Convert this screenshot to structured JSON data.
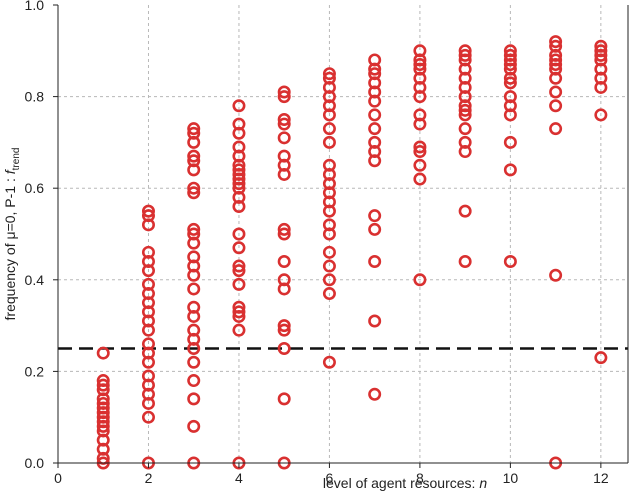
{
  "chart_data": {
    "type": "scatter",
    "title": "",
    "xlabel": "level of agent resources:",
    "xlabel_var": "n",
    "ylabel_prefix": "frequency of",
    "ylabel_mu": "μ=0, P-1 :",
    "ylabel_f": "f",
    "ylabel_sub": "trend",
    "xlim": [
      0,
      12.6
    ],
    "ylim": [
      0,
      1.0
    ],
    "x_ticks": [
      0,
      2,
      4,
      6,
      8,
      10,
      12
    ],
    "y_ticks": [
      0.0,
      0.2,
      0.4,
      0.6,
      0.8,
      1.0
    ],
    "y_tick_labels": [
      "0.0",
      "0.2",
      "0.4",
      "0.6",
      "0.8",
      "1.0"
    ],
    "grid": true,
    "reference_line_y": 0.25,
    "marker_color": "#d93030",
    "reference_line_color": "#111111",
    "grid_color": "#b8b8b8",
    "x": [
      1,
      1,
      1,
      1,
      1,
      1,
      1,
      1,
      1,
      1,
      1,
      1,
      1,
      1,
      1,
      1,
      2,
      2,
      2,
      2,
      2,
      2,
      2,
      2,
      2,
      2,
      2,
      2,
      2,
      2,
      2,
      2,
      2,
      2,
      2,
      2,
      2,
      3,
      3,
      3,
      3,
      3,
      3,
      3,
      3,
      3,
      3,
      3,
      3,
      3,
      3,
      3,
      3,
      3,
      3,
      3,
      3,
      3,
      3,
      3,
      3,
      3,
      4,
      4,
      4,
      4,
      4,
      4,
      4,
      4,
      4,
      4,
      4,
      4,
      4,
      4,
      4,
      4,
      4,
      4,
      4,
      4,
      4,
      4,
      4,
      5,
      5,
      5,
      5,
      5,
      5,
      5,
      5,
      5,
      5,
      5,
      5,
      5,
      5,
      5,
      5,
      5,
      5,
      6,
      6,
      6,
      6,
      6,
      6,
      6,
      6,
      6,
      6,
      6,
      6,
      6,
      6,
      6,
      6,
      6,
      6,
      6,
      6,
      6,
      7,
      7,
      7,
      7,
      7,
      7,
      7,
      7,
      7,
      7,
      7,
      7,
      7,
      7,
      7,
      7,
      8,
      8,
      8,
      8,
      8,
      8,
      8,
      8,
      8,
      8,
      8,
      8,
      8,
      8,
      9,
      9,
      9,
      9,
      9,
      9,
      9,
      9,
      9,
      9,
      9,
      9,
      9,
      9,
      9,
      10,
      10,
      10,
      10,
      10,
      10,
      10,
      10,
      10,
      10,
      10,
      10,
      10,
      11,
      11,
      11,
      11,
      11,
      11,
      11,
      11,
      11,
      11,
      11,
      11,
      12,
      12,
      12,
      12,
      12,
      12,
      12,
      12,
      12
    ],
    "y": [
      0.0,
      0.01,
      0.03,
      0.05,
      0.07,
      0.08,
      0.09,
      0.1,
      0.11,
      0.12,
      0.13,
      0.14,
      0.16,
      0.17,
      0.18,
      0.24,
      0.0,
      0.1,
      0.13,
      0.15,
      0.17,
      0.19,
      0.22,
      0.24,
      0.26,
      0.29,
      0.31,
      0.33,
      0.35,
      0.37,
      0.39,
      0.42,
      0.44,
      0.46,
      0.52,
      0.54,
      0.55,
      0.0,
      0.08,
      0.14,
      0.18,
      0.22,
      0.25,
      0.27,
      0.29,
      0.32,
      0.34,
      0.38,
      0.41,
      0.43,
      0.45,
      0.48,
      0.5,
      0.51,
      0.59,
      0.6,
      0.64,
      0.66,
      0.67,
      0.7,
      0.72,
      0.73,
      0.0,
      0.29,
      0.32,
      0.33,
      0.34,
      0.39,
      0.42,
      0.43,
      0.47,
      0.5,
      0.56,
      0.58,
      0.6,
      0.61,
      0.62,
      0.63,
      0.64,
      0.65,
      0.67,
      0.69,
      0.72,
      0.74,
      0.78,
      0.0,
      0.14,
      0.25,
      0.29,
      0.3,
      0.38,
      0.4,
      0.44,
      0.5,
      0.51,
      0.63,
      0.65,
      0.67,
      0.71,
      0.74,
      0.75,
      0.8,
      0.81,
      0.22,
      0.37,
      0.4,
      0.43,
      0.46,
      0.5,
      0.52,
      0.55,
      0.57,
      0.59,
      0.61,
      0.63,
      0.65,
      0.7,
      0.73,
      0.76,
      0.78,
      0.8,
      0.82,
      0.84,
      0.85,
      0.15,
      0.31,
      0.44,
      0.51,
      0.54,
      0.66,
      0.68,
      0.7,
      0.73,
      0.76,
      0.79,
      0.81,
      0.83,
      0.85,
      0.86,
      0.88,
      0.4,
      0.62,
      0.65,
      0.68,
      0.69,
      0.74,
      0.76,
      0.8,
      0.82,
      0.84,
      0.86,
      0.87,
      0.88,
      0.9,
      0.44,
      0.55,
      0.68,
      0.7,
      0.73,
      0.76,
      0.77,
      0.78,
      0.8,
      0.82,
      0.84,
      0.86,
      0.88,
      0.89,
      0.9,
      0.44,
      0.64,
      0.7,
      0.76,
      0.78,
      0.8,
      0.83,
      0.84,
      0.86,
      0.87,
      0.88,
      0.89,
      0.9,
      0.0,
      0.41,
      0.73,
      0.78,
      0.81,
      0.84,
      0.86,
      0.87,
      0.88,
      0.89,
      0.91,
      0.92,
      0.23,
      0.76,
      0.82,
      0.84,
      0.86,
      0.88,
      0.89,
      0.9,
      0.91
    ]
  }
}
